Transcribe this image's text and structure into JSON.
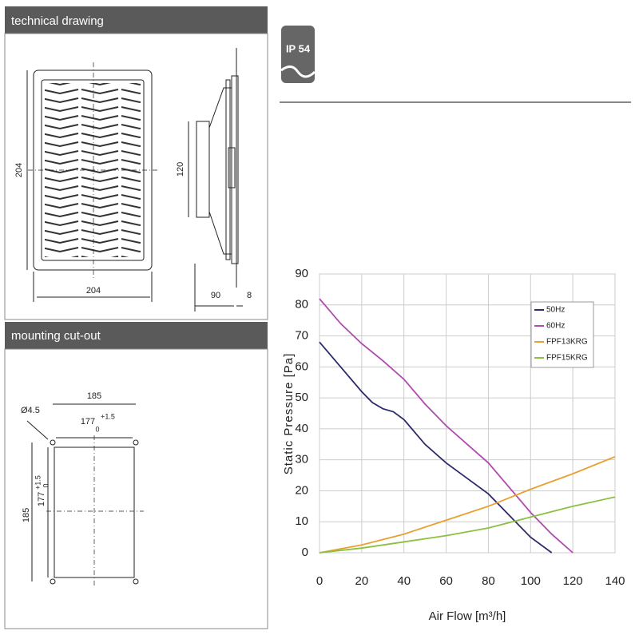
{
  "sections": [
    {
      "title": "technical drawing"
    },
    {
      "title": "mounting cut-out"
    }
  ],
  "badge": "IP 54",
  "technical_drawing": {
    "front_height": "204",
    "front_width": "204",
    "side_height": "120",
    "side_depth": "90",
    "side_flange": "8"
  },
  "cutout": {
    "hole": "Ø4.5",
    "width": "185",
    "inner_width": "177",
    "tol_upper": "+1.5",
    "tol_lower": "0",
    "height": "185",
    "inner_height": "177",
    "height_tol_upper": "+1.5",
    "height_tol_lower": "0"
  },
  "chart_data": {
    "type": "line",
    "xlabel": "Air Flow [m³/h]",
    "ylabel": "Static Pressure [Pa]",
    "xlim": [
      0,
      140
    ],
    "ylim": [
      0,
      90
    ],
    "xticks": [
      0,
      20,
      40,
      60,
      80,
      100,
      120,
      140
    ],
    "yticks": [
      0,
      10,
      20,
      30,
      40,
      50,
      60,
      70,
      80,
      90
    ],
    "grid": true,
    "legend": "upper right",
    "series": [
      {
        "name": "50Hz",
        "color": "#2b2b6b",
        "x": [
          0,
          10,
          20,
          25,
          30,
          35,
          40,
          50,
          60,
          70,
          80,
          90,
          100,
          110
        ],
        "values": [
          68,
          60,
          52,
          48.5,
          46.5,
          45.5,
          43,
          35,
          29,
          24,
          19,
          12,
          5,
          0
        ]
      },
      {
        "name": "60Hz",
        "color": "#b04ab0",
        "x": [
          0,
          10,
          20,
          30,
          40,
          50,
          60,
          70,
          80,
          90,
          100,
          110,
          120
        ],
        "values": [
          82,
          74,
          67.5,
          62,
          56,
          48,
          41,
          35,
          29,
          21,
          13,
          6,
          0
        ]
      },
      {
        "name": "FPF13KRG",
        "color": "#e8a030",
        "x": [
          0,
          20,
          40,
          60,
          80,
          100,
          120,
          140
        ],
        "values": [
          0,
          2.5,
          6,
          10.5,
          15,
          20.5,
          25.5,
          31
        ]
      },
      {
        "name": "FPF15KRG",
        "color": "#8cc040",
        "x": [
          0,
          20,
          40,
          60,
          80,
          100,
          120,
          140
        ],
        "values": [
          0,
          1.5,
          3.5,
          5.5,
          8,
          11.5,
          15,
          18
        ]
      }
    ]
  }
}
